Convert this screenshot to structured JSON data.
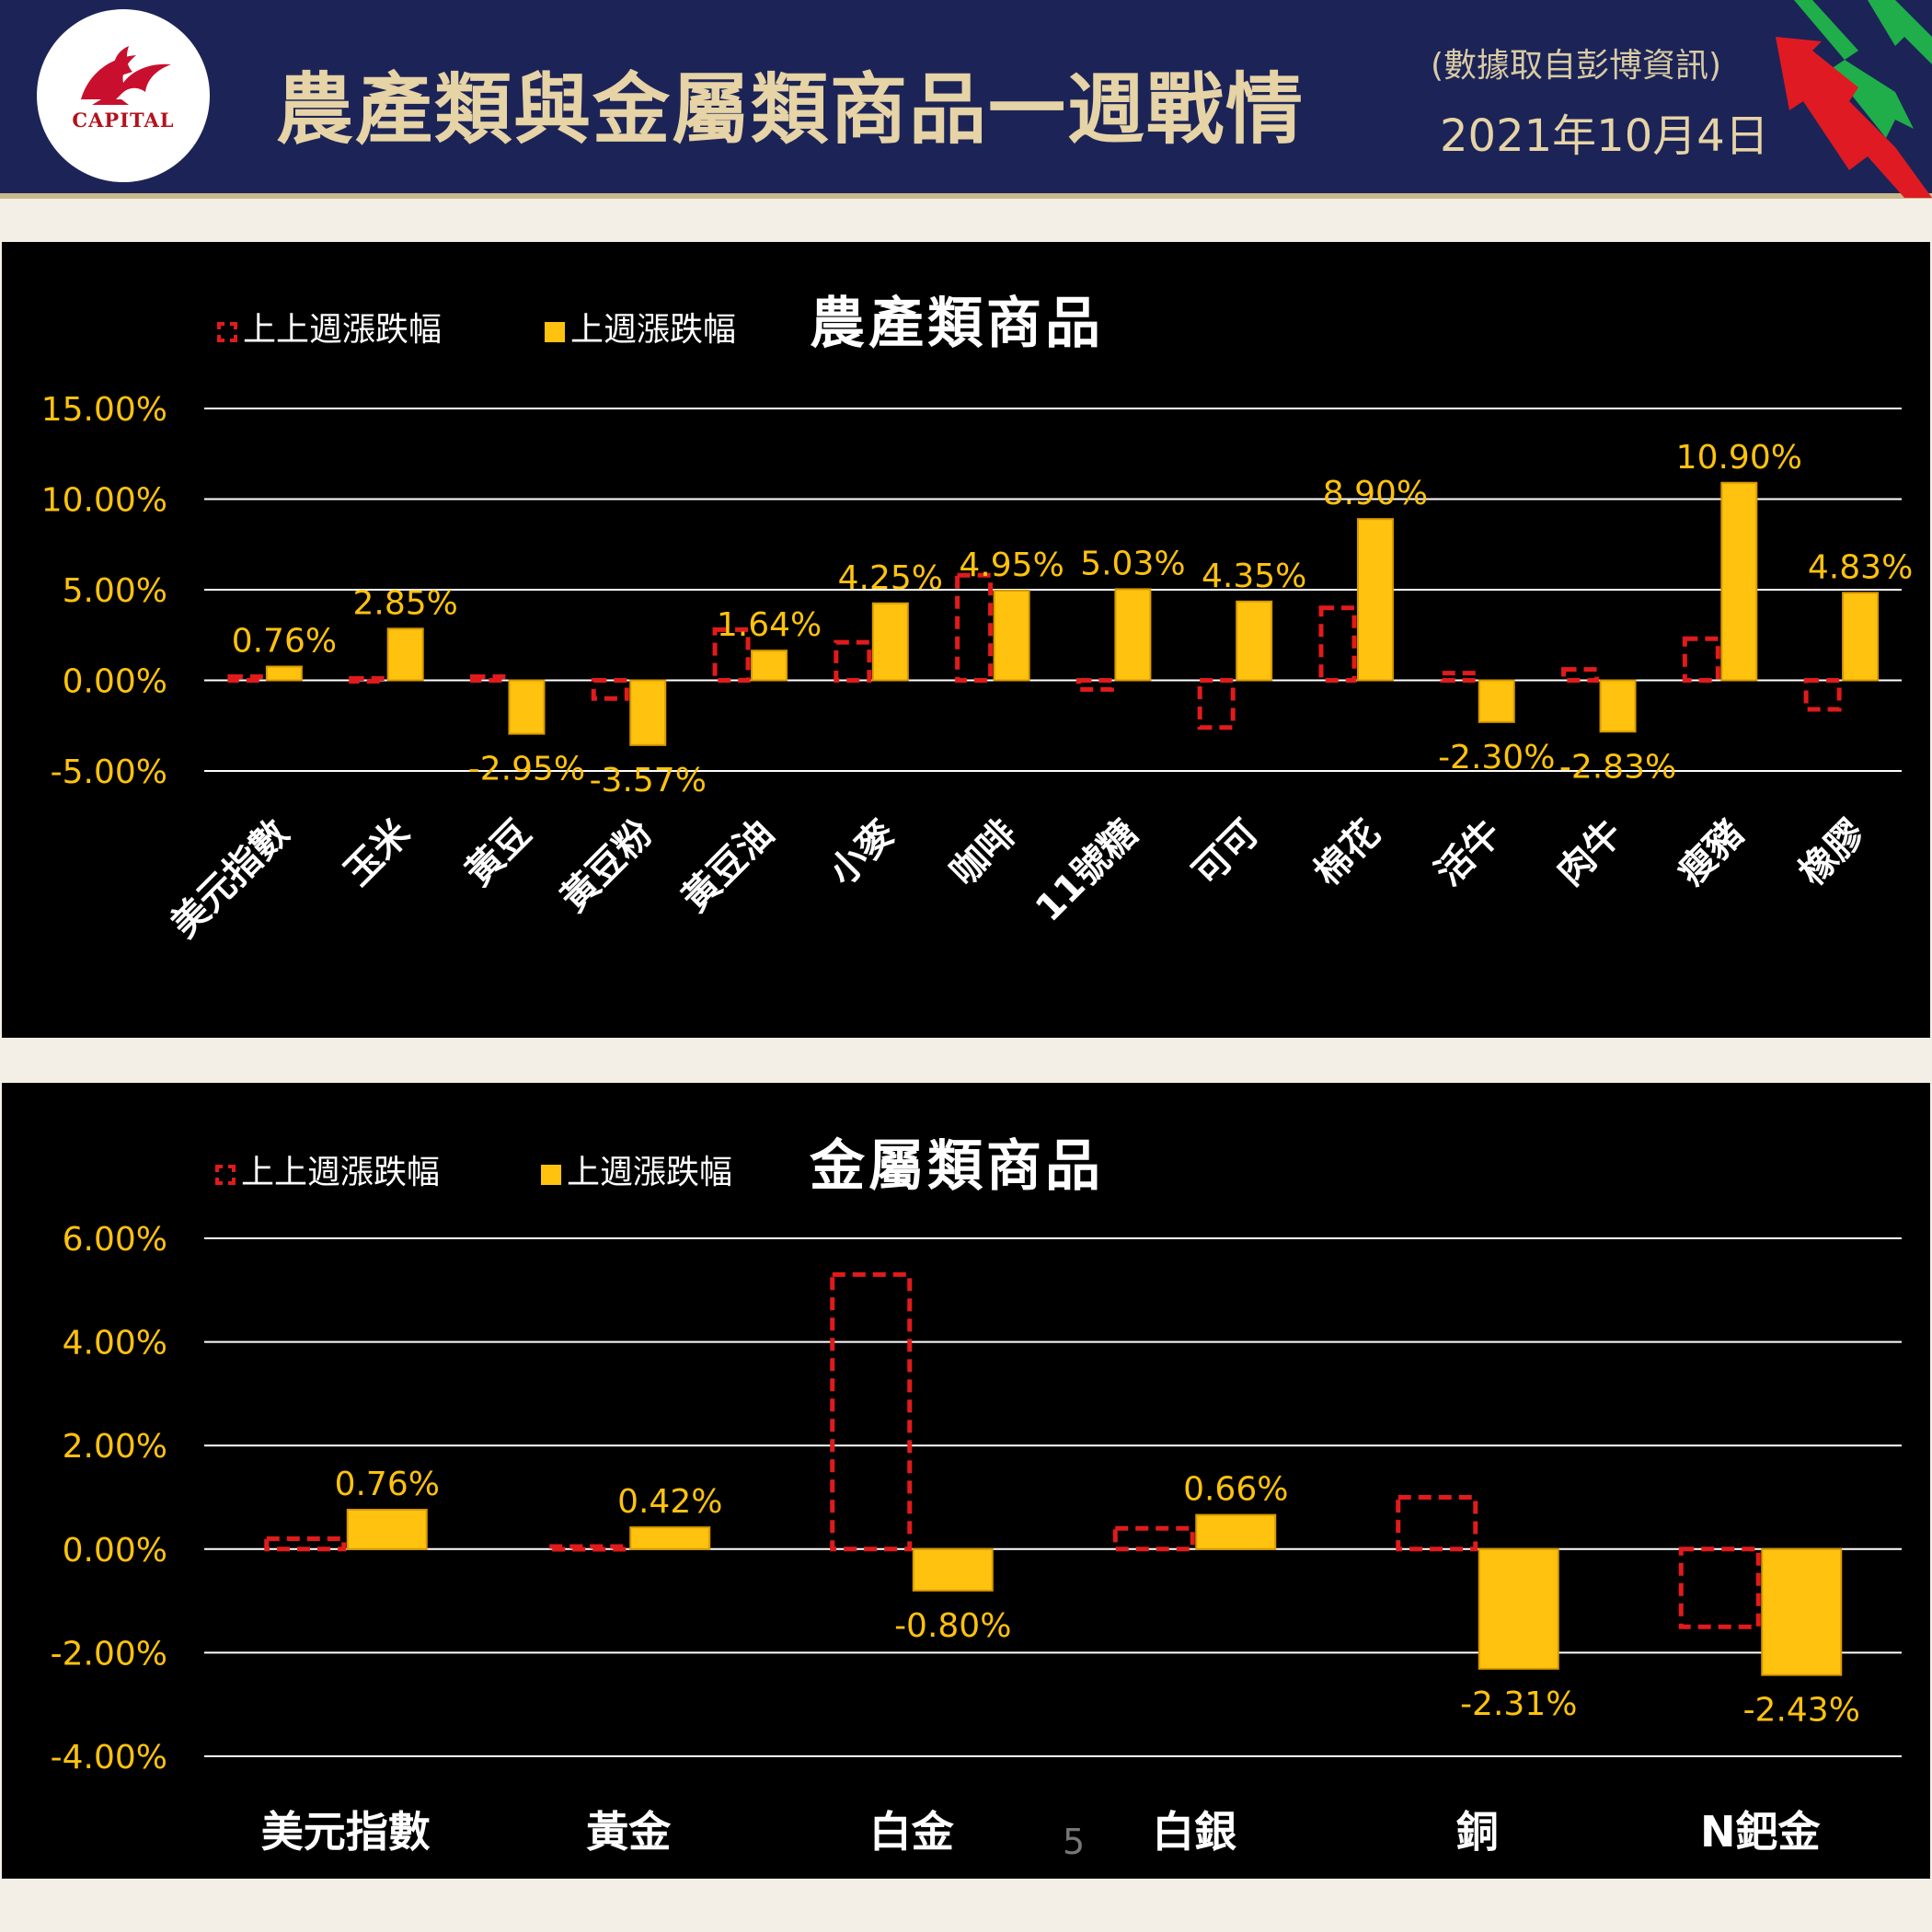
{
  "header": {
    "logo_text": "CAPITAL",
    "title": "農產類與金屬類商品一週戰情",
    "source_note": "(數據取自彭博資訊)",
    "date": "2021年10月4日"
  },
  "page_number": "5",
  "colors": {
    "header_bg": "#1c2457",
    "title_gold": "#e6d3a6",
    "bar_gold": "#ffc20e",
    "prev_week_red": "#e11b1b",
    "axis_label": "#ffc20e"
  },
  "chart_data": [
    {
      "type": "bar",
      "title": "農產類商品",
      "legend": [
        "上上週漲跌幅",
        "上週漲跌幅"
      ],
      "legend_placement": "top-left",
      "grid": true,
      "ylim": [
        -5,
        15
      ],
      "yticks": [
        "15.00%",
        "10.00%",
        "5.00%",
        "0.00%",
        "-5.00%"
      ],
      "ytick_values": [
        15,
        10,
        5,
        0,
        -5
      ],
      "categories": [
        "美元指數",
        "玉米",
        "黃豆",
        "黃豆粉",
        "黃豆油",
        "小麥",
        "咖啡",
        "11號糖",
        "可可",
        "棉花",
        "活牛",
        "肉牛",
        "瘦豬",
        "橡膠"
      ],
      "series": [
        {
          "name": "上上週漲跌幅",
          "style": "dashed-outline",
          "values": [
            0.2,
            0.1,
            0.2,
            -1.0,
            2.8,
            2.1,
            5.8,
            -0.5,
            -2.6,
            4.0,
            0.4,
            0.6,
            2.3,
            -1.6
          ]
        },
        {
          "name": "上週漲跌幅",
          "style": "gold-fill",
          "values": [
            0.76,
            2.85,
            -2.95,
            -3.57,
            1.64,
            4.25,
            4.95,
            5.03,
            4.35,
            8.9,
            -2.3,
            -2.83,
            10.9,
            4.83
          ],
          "labels": [
            "0.76%",
            "2.85%",
            "-2.95%",
            "-3.57%",
            "1.64%",
            "4.25%",
            "4.95%",
            "5.03%",
            "4.35%",
            "8.90%",
            "-2.30%",
            "-2.83%",
            "10.90%",
            "4.83%"
          ]
        }
      ]
    },
    {
      "type": "bar",
      "title": "金屬類商品",
      "legend": [
        "上上週漲跌幅",
        "上週漲跌幅"
      ],
      "legend_placement": "top-left",
      "grid": true,
      "ylim": [
        -4,
        6
      ],
      "yticks": [
        "6.00%",
        "4.00%",
        "2.00%",
        "0.00%",
        "-2.00%",
        "-4.00%"
      ],
      "ytick_values": [
        6,
        4,
        2,
        0,
        -2,
        -4
      ],
      "categories": [
        "美元指數",
        "黃金",
        "白金",
        "白銀",
        "銅",
        "N鈀金"
      ],
      "series": [
        {
          "name": "上上週漲跌幅",
          "style": "dashed-outline",
          "values": [
            0.2,
            0.05,
            5.3,
            0.4,
            1.0,
            -1.5
          ]
        },
        {
          "name": "上週漲跌幅",
          "style": "gold-fill",
          "values": [
            0.76,
            0.42,
            -0.8,
            0.66,
            -2.31,
            -2.43
          ],
          "labels": [
            "0.76%",
            "0.42%",
            "-0.80%",
            "0.66%",
            "-2.31%",
            "-2.43%"
          ]
        }
      ]
    }
  ]
}
